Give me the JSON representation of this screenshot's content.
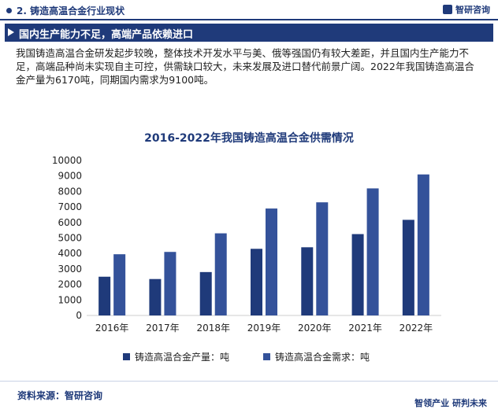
{
  "header": {
    "section_title": "2. 铸造高温合金行业现状",
    "logo_text": "智研咨询"
  },
  "banner": {
    "title": "国内生产能力不足，高端产品依赖进口"
  },
  "paragraph": "我国铸造高温合金研发起步较晚，整体技术开发水平与美、俄等强国仍有较大差距，并且国内生产能力不足，高端品种尚未实现自主可控，供需缺口较大，未来发展及进口替代前景广阔。2022年我国铸造高温合金产量为6170吨，同期国内需求为9100吨。",
  "footer": {
    "source": "资料来源：智研咨询",
    "slogan": "智领产业  研判未来"
  },
  "colors": {
    "brand": "#1f3a7a",
    "series_production": "#1f3a7a",
    "series_demand": "#34529a"
  },
  "chart_data": {
    "type": "bar",
    "title": "2016-2022年我国铸造高温合金供需情况",
    "categories": [
      "2016年",
      "2017年",
      "2018年",
      "2019年",
      "2020年",
      "2021年",
      "2022年"
    ],
    "series": [
      {
        "name": "铸造高温合金产量：吨",
        "values": [
          2500,
          2350,
          2800,
          4300,
          4400,
          5250,
          6170
        ]
      },
      {
        "name": "铸造高温合金需求：吨",
        "values": [
          3950,
          4100,
          5300,
          6900,
          7300,
          8200,
          9100
        ]
      }
    ],
    "ylim": [
      0,
      10000
    ],
    "yticks": [
      0,
      1000,
      2000,
      3000,
      4000,
      5000,
      6000,
      7000,
      8000,
      9000,
      10000
    ],
    "grid": false,
    "legend": "bottom"
  }
}
